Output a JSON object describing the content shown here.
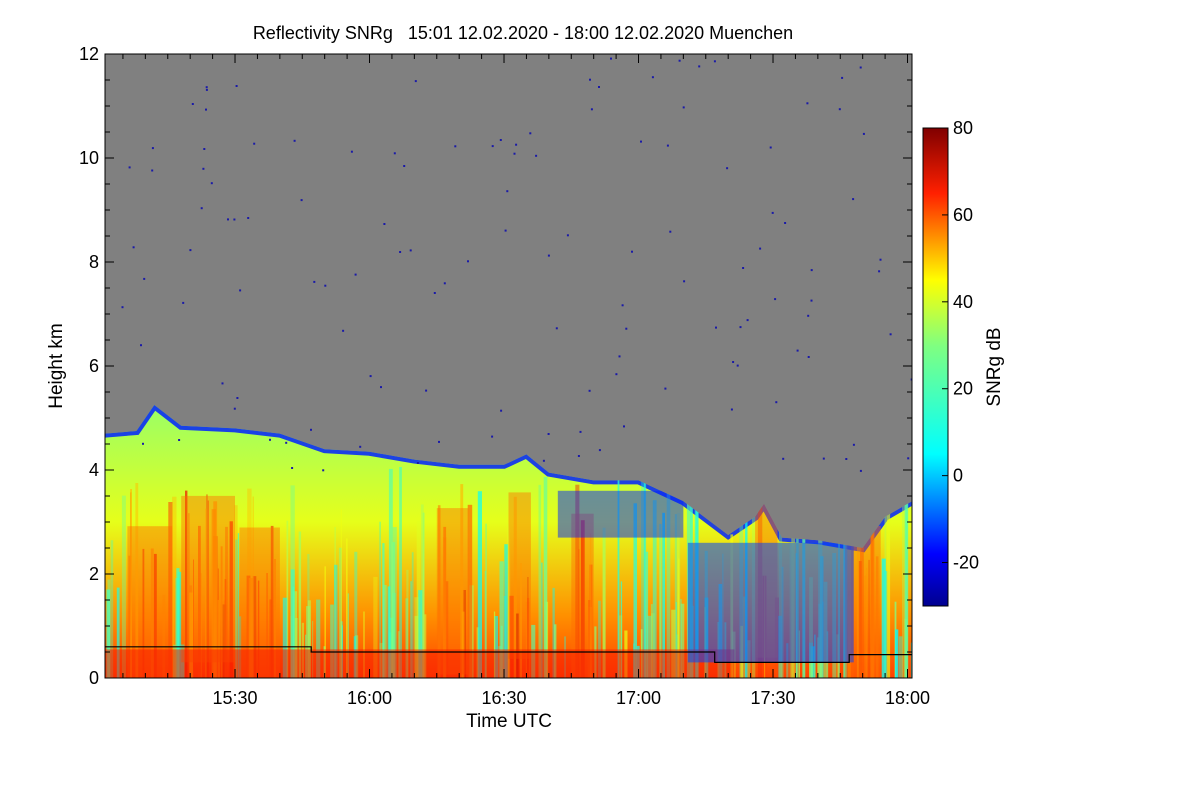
{
  "chart_data": {
    "type": "heatmap",
    "title": "Reflectivity SNRg   15:01 12.02.2020 - 18:00 12.02.2020 Muenchen",
    "xlabel": "Time UTC",
    "ylabel": "Height km",
    "xlim_minutes": [
      901,
      1081
    ],
    "ylim": [
      0,
      12
    ],
    "x_ticks": [
      {
        "label": "15:30",
        "value": 930
      },
      {
        "label": "16:00",
        "value": 960
      },
      {
        "label": "16:30",
        "value": 990
      },
      {
        "label": "17:00",
        "value": 1020
      },
      {
        "label": "17:30",
        "value": 1050
      },
      {
        "label": "18:00",
        "value": 1080
      }
    ],
    "y_ticks": [
      {
        "label": "0",
        "value": 0
      },
      {
        "label": "2",
        "value": 2
      },
      {
        "label": "4",
        "value": 4
      },
      {
        "label": "6",
        "value": 6
      },
      {
        "label": "8",
        "value": 8
      },
      {
        "label": "10",
        "value": 10
      },
      {
        "label": "12",
        "value": 12
      }
    ],
    "colorbar": {
      "label": "SNRg dB",
      "range": [
        -30,
        80
      ],
      "ticks": [
        {
          "label": "80",
          "value": 80
        },
        {
          "label": "60",
          "value": 60
        },
        {
          "label": "40",
          "value": 40
        },
        {
          "label": "20",
          "value": 20
        },
        {
          "label": "0",
          "value": 0
        },
        {
          "label": "-20",
          "value": -20
        }
      ],
      "stops": [
        {
          "value": -30,
          "color": "#00008f"
        },
        {
          "value": -18,
          "color": "#0000ff"
        },
        {
          "value": 5,
          "color": "#00ffff"
        },
        {
          "value": 30,
          "color": "#80ff80"
        },
        {
          "value": 45,
          "color": "#ffff00"
        },
        {
          "value": 65,
          "color": "#ff2000"
        },
        {
          "value": 80,
          "color": "#800000"
        }
      ]
    },
    "no_signal_color": "#808080",
    "cloud_top_km": [
      {
        "t": 901,
        "h": 4.7
      },
      {
        "t": 908,
        "h": 4.75
      },
      {
        "t": 912,
        "h": 5.25
      },
      {
        "t": 918,
        "h": 4.85
      },
      {
        "t": 930,
        "h": 4.8
      },
      {
        "t": 940,
        "h": 4.7
      },
      {
        "t": 950,
        "h": 4.4
      },
      {
        "t": 960,
        "h": 4.35
      },
      {
        "t": 970,
        "h": 4.2
      },
      {
        "t": 980,
        "h": 4.1
      },
      {
        "t": 990,
        "h": 4.1
      },
      {
        "t": 995,
        "h": 4.3
      },
      {
        "t": 1000,
        "h": 3.95
      },
      {
        "t": 1010,
        "h": 3.8
      },
      {
        "t": 1020,
        "h": 3.8
      },
      {
        "t": 1030,
        "h": 3.4
      },
      {
        "t": 1040,
        "h": 2.75
      },
      {
        "t": 1046,
        "h": 3.1
      },
      {
        "t": 1048,
        "h": 3.35
      },
      {
        "t": 1052,
        "h": 2.7
      },
      {
        "t": 1060,
        "h": 2.65
      },
      {
        "t": 1070,
        "h": 2.5
      },
      {
        "t": 1075,
        "h": 3.1
      },
      {
        "t": 1081,
        "h": 3.4
      }
    ],
    "boundary_layer_km": [
      {
        "t": 901,
        "h": 0.6
      },
      {
        "t": 947,
        "h": 0.6
      },
      {
        "t": 947,
        "h": 0.5
      },
      {
        "t": 1037,
        "h": 0.5
      },
      {
        "t": 1037,
        "h": 0.3
      },
      {
        "t": 1067,
        "h": 0.3
      },
      {
        "t": 1067,
        "h": 0.45
      },
      {
        "t": 1081,
        "h": 0.45
      }
    ]
  }
}
